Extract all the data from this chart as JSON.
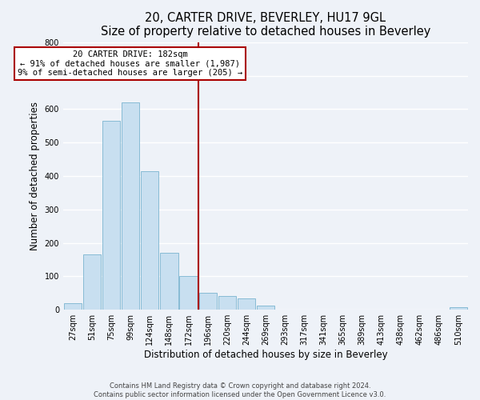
{
  "title": "20, CARTER DRIVE, BEVERLEY, HU17 9GL",
  "subtitle": "Size of property relative to detached houses in Beverley",
  "xlabel": "Distribution of detached houses by size in Beverley",
  "ylabel": "Number of detached properties",
  "bar_labels": [
    "27sqm",
    "51sqm",
    "75sqm",
    "99sqm",
    "124sqm",
    "148sqm",
    "172sqm",
    "196sqm",
    "220sqm",
    "244sqm",
    "269sqm",
    "293sqm",
    "317sqm",
    "341sqm",
    "365sqm",
    "389sqm",
    "413sqm",
    "438sqm",
    "462sqm",
    "486sqm",
    "510sqm"
  ],
  "bar_values": [
    20,
    165,
    565,
    620,
    415,
    170,
    100,
    50,
    40,
    35,
    12,
    0,
    0,
    0,
    0,
    0,
    0,
    0,
    0,
    0,
    7
  ],
  "bar_color": "#c8dff0",
  "bar_edge_color": "#7ab4d0",
  "vline_x_index": 6.5,
  "vline_color": "#aa0000",
  "annotation_title": "20 CARTER DRIVE: 182sqm",
  "annotation_line1": "← 91% of detached houses are smaller (1,987)",
  "annotation_line2": "9% of semi-detached houses are larger (205) →",
  "annotation_box_color": "#ffffff",
  "annotation_box_edge": "#aa0000",
  "ylim": [
    0,
    800
  ],
  "yticks": [
    0,
    100,
    200,
    300,
    400,
    500,
    600,
    700,
    800
  ],
  "footer_line1": "Contains HM Land Registry data © Crown copyright and database right 2024.",
  "footer_line2": "Contains public sector information licensed under the Open Government Licence v3.0.",
  "background_color": "#eef2f8",
  "grid_color": "#ffffff",
  "title_fontsize": 10.5,
  "axis_label_fontsize": 8.5,
  "tick_fontsize": 7,
  "annotation_fontsize": 7.5,
  "footer_fontsize": 6
}
